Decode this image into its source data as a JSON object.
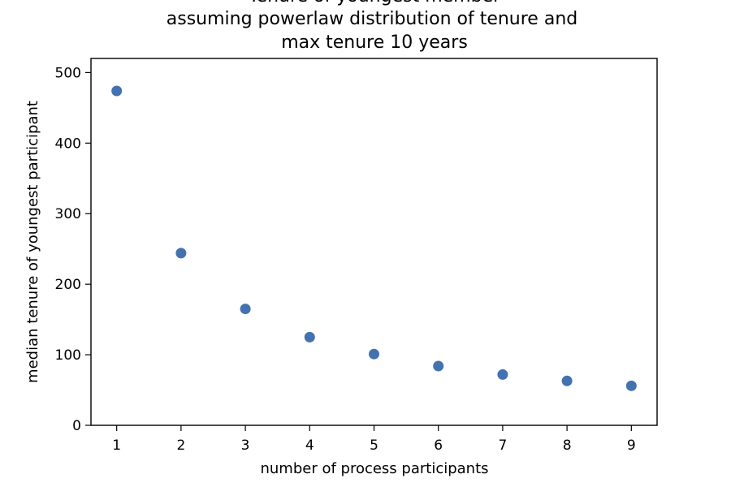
{
  "chart_data": {
    "type": "scatter",
    "title_lines": [
      "Tenure of youngest member",
      "assuming powerlaw distribution of tenure and",
      "max tenure 10 years"
    ],
    "xlabel": "number of process participants",
    "ylabel": "median tenure of youngest participant",
    "xlim": [
      0.6,
      9.4
    ],
    "ylim": [
      0,
      520
    ],
    "xticks": [
      1,
      2,
      3,
      4,
      5,
      6,
      7,
      8,
      9
    ],
    "yticks": [
      0,
      100,
      200,
      300,
      400,
      500
    ],
    "grid": false,
    "marker_color": "#4472b0",
    "points": [
      {
        "x": 1,
        "y": 474
      },
      {
        "x": 2,
        "y": 244
      },
      {
        "x": 3,
        "y": 165
      },
      {
        "x": 4,
        "y": 125
      },
      {
        "x": 5,
        "y": 101
      },
      {
        "x": 6,
        "y": 84
      },
      {
        "x": 7,
        "y": 72
      },
      {
        "x": 8,
        "y": 63
      },
      {
        "x": 9,
        "y": 56
      }
    ]
  }
}
